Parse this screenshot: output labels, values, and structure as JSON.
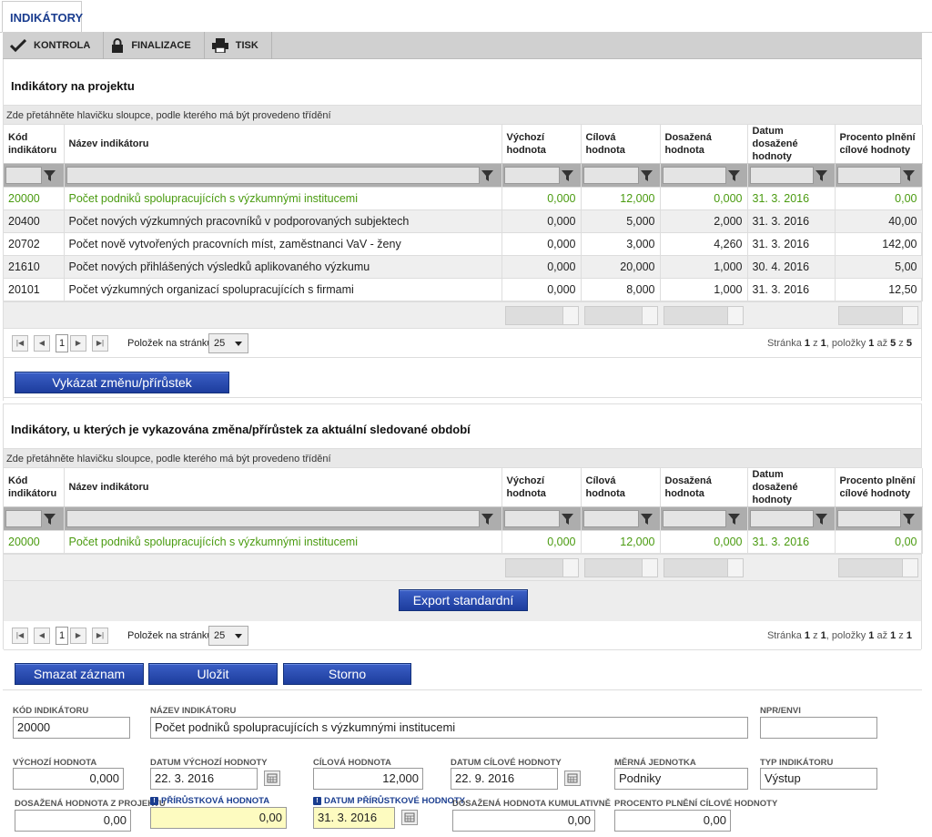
{
  "tab": {
    "label": "INDIKÁTORY"
  },
  "toolbar": {
    "kontrola": "KONTROLA",
    "finalizace": "FINALIZACE",
    "tisk": "TISK"
  },
  "section1": {
    "title": "Indikátory na projektu",
    "hint": "Zde přetáhněte hlavičku sloupce, podle kterého má být provedeno třídění"
  },
  "columns": {
    "kod": "Kód indikátoru",
    "nazev": "Název indikátoru",
    "vychozi": "Výchozí hodnota",
    "cilova": "Cílová hodnota",
    "dosazena": "Dosažená hodnota",
    "datum": "Datum dosažené hodnoty",
    "procento": "Procento plnění cílové hodnoty"
  },
  "rows1": [
    {
      "kod": "20000",
      "nazev": "Počet podniků spolupracujících s výzkumnými institucemi",
      "vychozi": "0,000",
      "cilova": "12,000",
      "dosazena": "0,000",
      "datum": "31. 3. 2016",
      "procento": "0,00"
    },
    {
      "kod": "20400",
      "nazev": "Počet nových výzkumných pracovníků v podporovaných subjektech",
      "vychozi": "0,000",
      "cilova": "5,000",
      "dosazena": "2,000",
      "datum": "31. 3. 2016",
      "procento": "40,00"
    },
    {
      "kod": "20702",
      "nazev": "Počet nově vytvořených pracovních míst, zaměstnanci VaV - ženy",
      "vychozi": "0,000",
      "cilova": "3,000",
      "dosazena": "4,260",
      "datum": "31. 3. 2016",
      "procento": "142,00"
    },
    {
      "kod": "21610",
      "nazev": "Počet nových přihlášených výsledků aplikovaného výzkumu",
      "vychozi": "0,000",
      "cilova": "20,000",
      "dosazena": "1,000",
      "datum": "30. 4. 2016",
      "procento": "5,00"
    },
    {
      "kod": "20101",
      "nazev": "Počet výzkumných organizací spolupracujících s firmami",
      "vychozi": "0,000",
      "cilova": "8,000",
      "dosazena": "1,000",
      "datum": "31. 3. 2016",
      "procento": "12,50"
    }
  ],
  "pager1": {
    "page": "1",
    "per_page_label": "Položek na stránku",
    "per_page": "25",
    "info_prefix": "Stránka ",
    "p": "1",
    "of": " z ",
    "pages": "1",
    "items": ", položky ",
    "from": "1",
    "to_word": " až ",
    "to": "5",
    "z2": " z ",
    "total": "5"
  },
  "button_vykazat": "Vykázat změnu/přírůstek",
  "section2": {
    "title": "Indikátory, u kterých je vykazována změna/přírůstek za aktuální sledované období",
    "hint": "Zde přetáhněte hlavičku sloupce, podle kterého má být provedeno třídění"
  },
  "rows2": [
    {
      "kod": "20000",
      "nazev": "Počet podniků spolupracujících s výzkumnými institucemi",
      "vychozi": "0,000",
      "cilova": "12,000",
      "dosazena": "0,000",
      "datum": "31. 3. 2016",
      "procento": "0,00"
    }
  ],
  "button_export": "Export standardní",
  "pager2": {
    "page": "1",
    "per_page_label": "Položek na stránku",
    "per_page": "25",
    "info_prefix": "Stránka ",
    "p": "1",
    "of": " z ",
    "pages": "1",
    "items": ", položky ",
    "from": "1",
    "to_word": " až ",
    "to": "1",
    "z2": " z ",
    "total": "1"
  },
  "actions": {
    "smazat": "Smazat záznam",
    "ulozit": "Uložit",
    "storno": "Storno"
  },
  "form": {
    "kod_label": "KÓD INDIKÁTORU",
    "kod": "20000",
    "nazev_label": "NÁZEV INDIKÁTORU",
    "nazev": "Počet podniků spolupracujících s výzkumnými institucemi",
    "npr_label": "NPR/ENVI",
    "npr": "",
    "vychozi_label": "VÝCHOZÍ HODNOTA",
    "vychozi": "0,000",
    "datum_vychozi_label": "DATUM VÝCHOZÍ HODNOTY",
    "datum_vychozi": "22. 3. 2016",
    "cilova_label": "CÍLOVÁ HODNOTA",
    "cilova": "12,000",
    "datum_cilove_label": "DATUM CÍLOVÉ HODNOTY",
    "datum_cilove": "22. 9. 2016",
    "merna_label": "MĚRNÁ JEDNOTKA",
    "merna": "Podniky",
    "typ_label": "TYP INDIKÁTORU",
    "typ": "Výstup",
    "dosazena_label": "DOSAŽENÁ HODNOTA Z PROJEKTU",
    "dosazena": "0,00",
    "prirustkova_label": "PŘÍRŮSTKOVÁ HODNOTA",
    "prirustkova": "0,00",
    "datum_prir_label": "DATUM PŘÍRŮSTKOVÉ HODNOTY",
    "datum_prir": "31. 3. 2016",
    "kumulativne_label": "DOSAŽENÁ HODNOTA KUMULATIVNĚ",
    "kumulativne": "0,00",
    "procento_label": "PROCENTO PLNĚNÍ CÍLOVÉ HODNOTY",
    "procento": "0,00"
  },
  "colors": {
    "accent": "#1a3d8f",
    "selected_row": "#4a9b10",
    "button": "#1d3d9d",
    "highlight_field": "#fdfbc0"
  }
}
